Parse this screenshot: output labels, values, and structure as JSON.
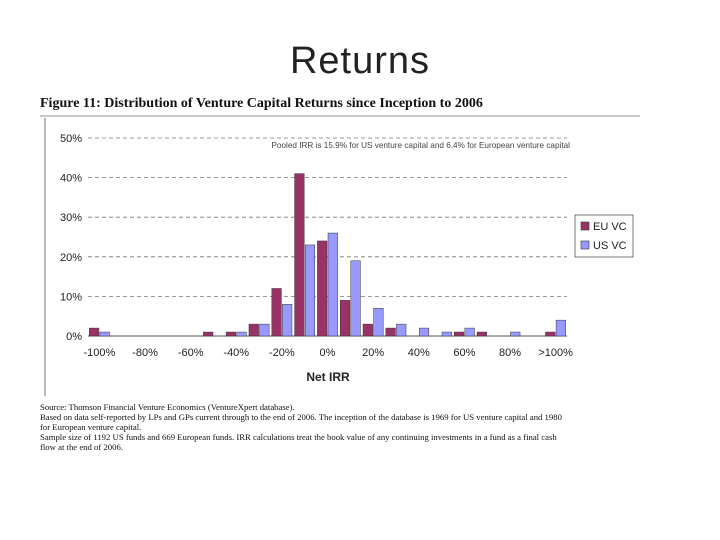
{
  "slide": {
    "title": "Returns"
  },
  "figure": {
    "caption": "Figure 11: Distribution of Venture Capital Returns since Inception to 2006",
    "notes": [
      "Source: Thomson Financial Venture Economics (VentureXpert database).",
      "Based on data self-reported by LPs and GPs current through to the end of 2006. The inception of the database is 1969 for US venture capital and 1980",
      "for European venture capital.",
      "Sample size of 1192 US funds and 669 European funds.  IRR calculations treat the book value of any continuing investments in a fund as a final cash",
      "flow at the end of 2006."
    ]
  },
  "chart_data": {
    "type": "bar",
    "title": "",
    "xlabel": "Net IRR",
    "ylabel": "",
    "annotation": "Pooled IRR is 15.9% for US venture capital and 6.4% for European venture capital",
    "ylim": [
      0,
      50
    ],
    "yticks": [
      "0%",
      "10%",
      "20%",
      "30%",
      "40%",
      "50%"
    ],
    "ytick_values": [
      0,
      10,
      20,
      30,
      40,
      50
    ],
    "xtick_labels": [
      "-100%",
      "-80%",
      "-60%",
      "-40%",
      "-20%",
      "0%",
      "20%",
      "40%",
      "60%",
      "80%",
      ">100%"
    ],
    "categories": [
      "-100%",
      "-90%",
      "-80%",
      "-70%",
      "-60%",
      "-50%",
      "-40%",
      "-30%",
      "-20%",
      "-10%",
      "0%",
      "10%",
      "20%",
      "30%",
      "40%",
      "50%",
      "60%",
      "70%",
      "80%",
      "90%",
      ">100%"
    ],
    "grid": "horizontal dashed",
    "legend_position": "right",
    "series": [
      {
        "name": "EU VC",
        "color": "#993366",
        "values": [
          2,
          0,
          0,
          0,
          0,
          1,
          1,
          3,
          12,
          41,
          24,
          9,
          3,
          2,
          0,
          0,
          1,
          1,
          0,
          0,
          1
        ]
      },
      {
        "name": "US VC",
        "color": "#9999ff",
        "values": [
          1,
          0,
          0,
          0,
          0,
          0,
          1,
          3,
          8,
          23,
          26,
          19,
          7,
          3,
          2,
          1,
          2,
          0,
          1,
          0,
          4
        ]
      }
    ]
  }
}
